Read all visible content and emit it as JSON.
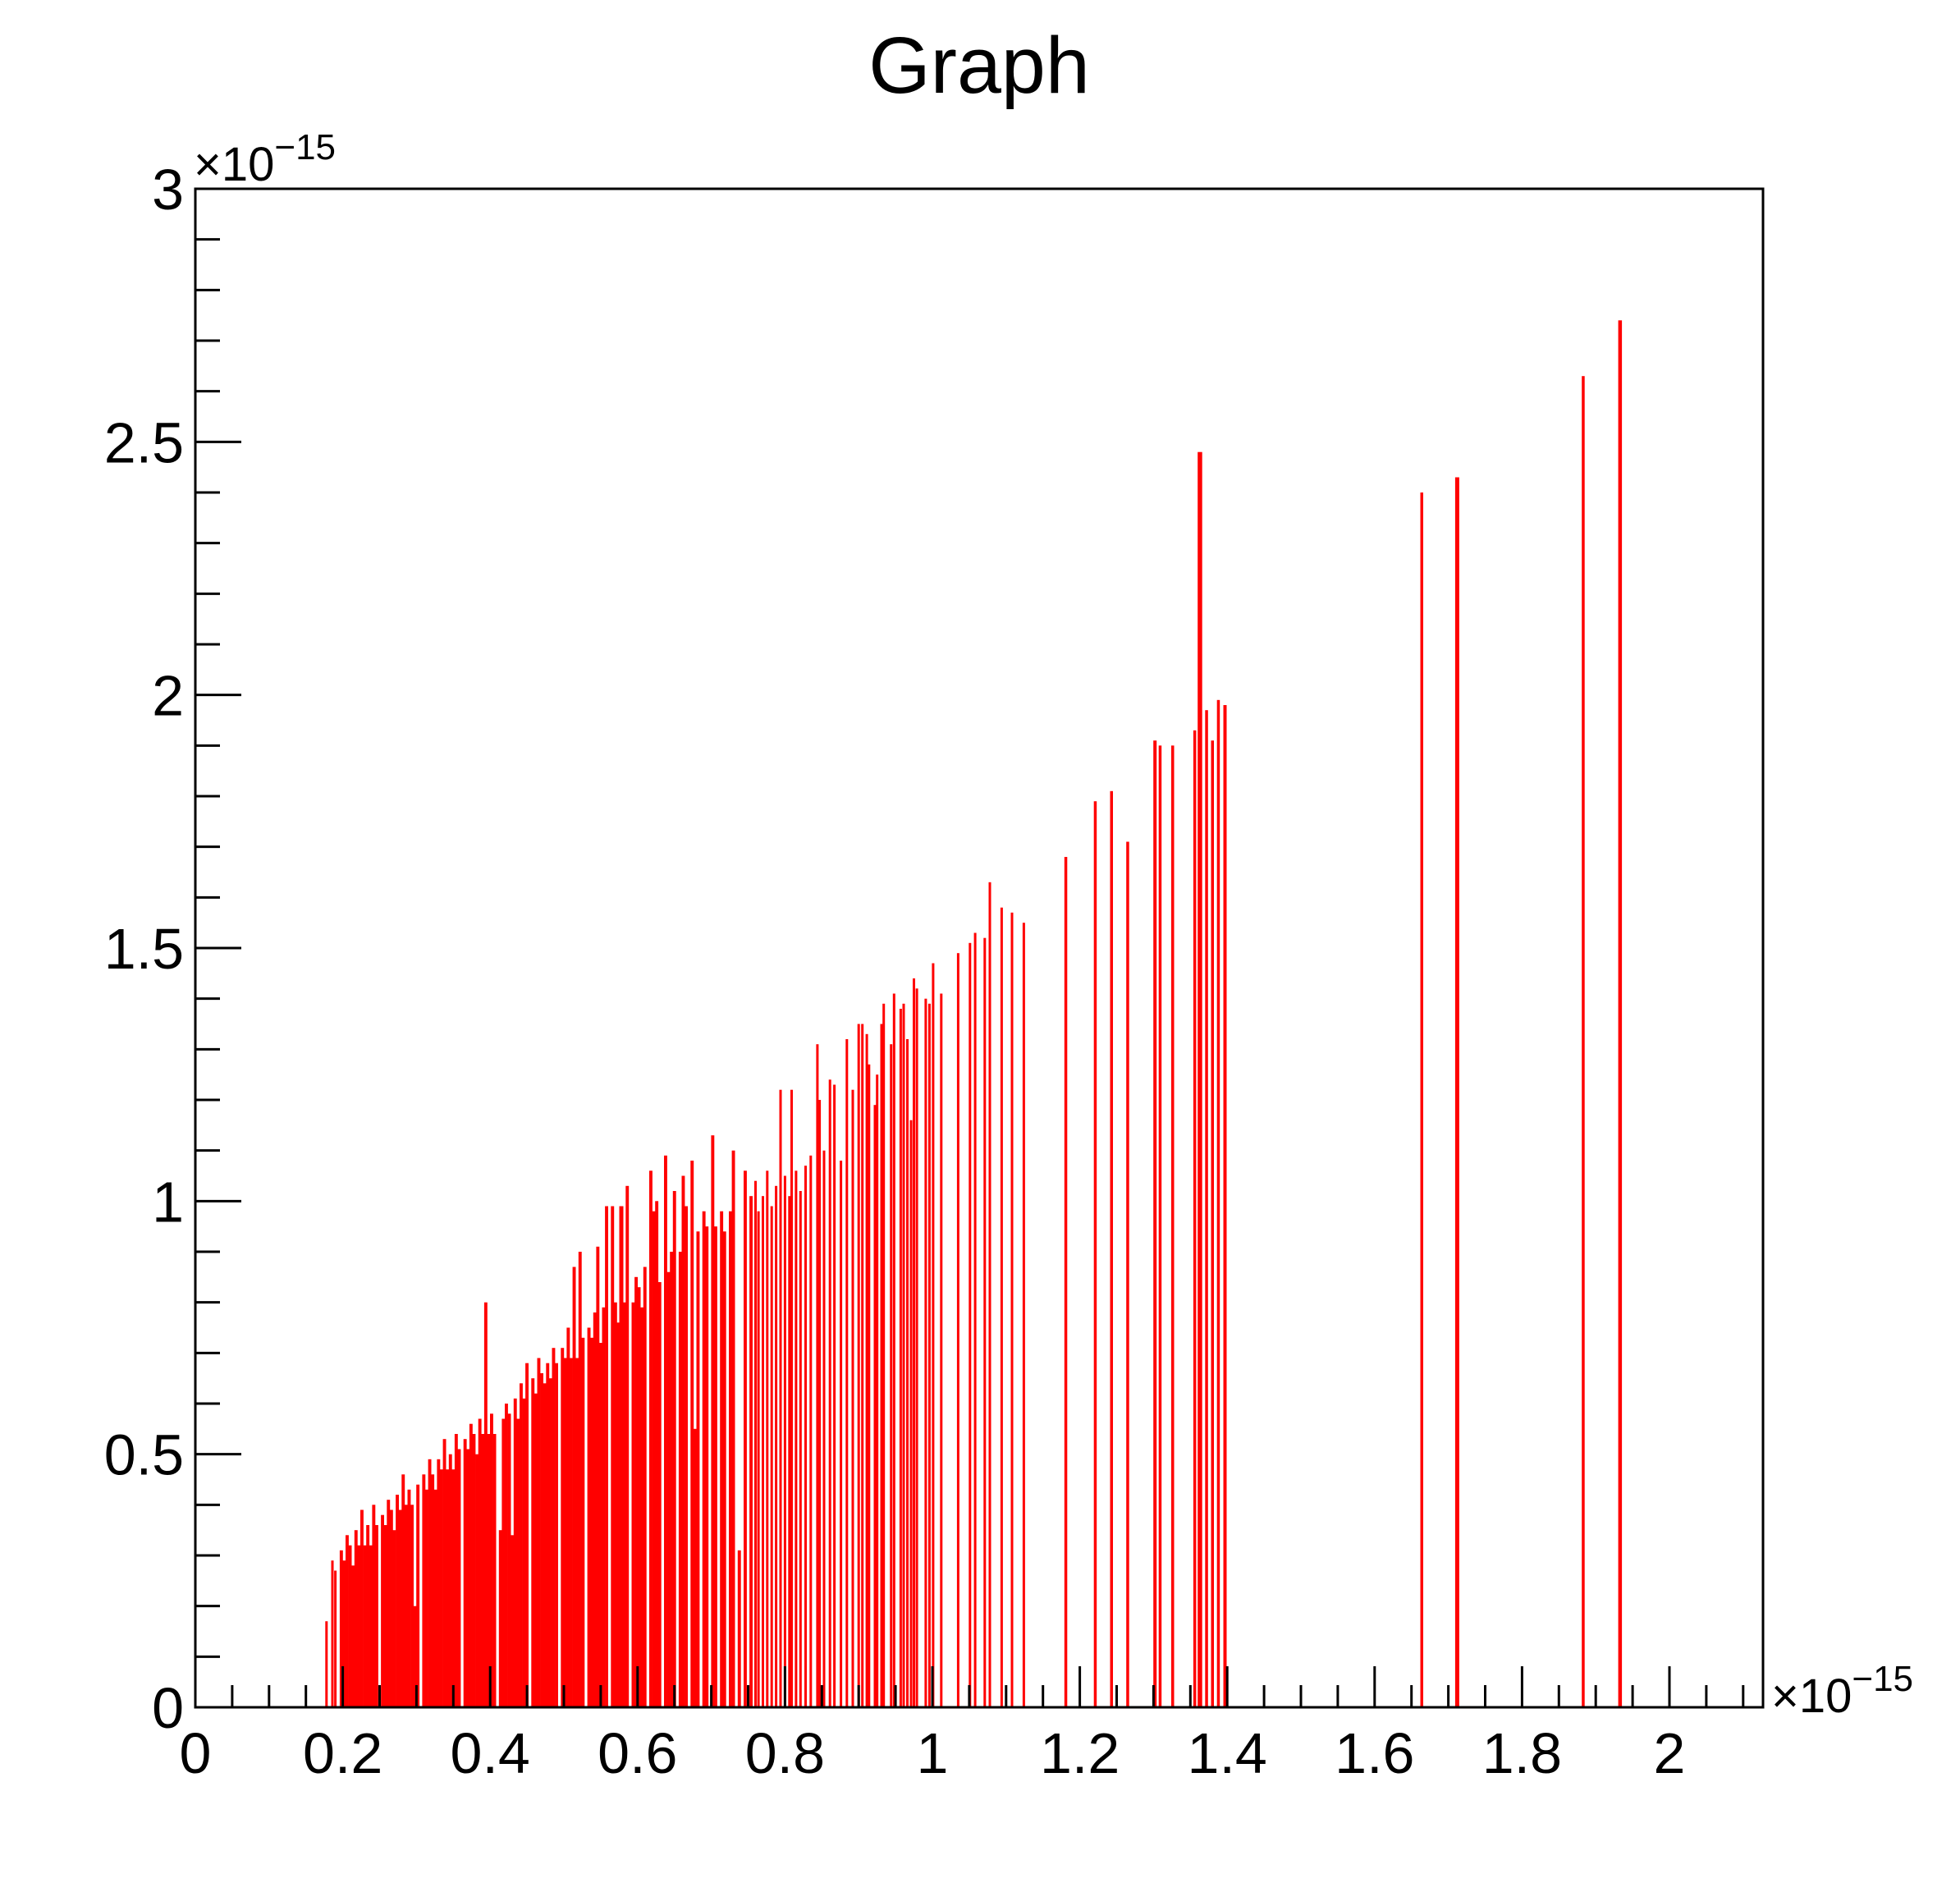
{
  "header": {
    "title": "Graph"
  },
  "chart_data": {
    "type": "bar",
    "title": "Graph",
    "xlabel": "",
    "ylabel": "",
    "legend": "none",
    "grid": false,
    "xlim": [
      0,
      2.127
    ],
    "ylim": [
      0,
      3
    ],
    "unit_scale": "both axes in units of 1e-15",
    "x_axis": {
      "exponent_mantissa": "×10",
      "exponent_power": "−15",
      "major_ticks": [
        {
          "v": 0,
          "label": "0"
        },
        {
          "v": 0.2,
          "label": "0.2"
        },
        {
          "v": 0.4,
          "label": "0.4"
        },
        {
          "v": 0.6,
          "label": "0.6"
        },
        {
          "v": 0.8,
          "label": "0.8"
        },
        {
          "v": 1,
          "label": "1"
        },
        {
          "v": 1.2,
          "label": "1.2"
        },
        {
          "v": 1.4,
          "label": "1.4"
        },
        {
          "v": 1.6,
          "label": "1.6"
        },
        {
          "v": 1.8,
          "label": "1.8"
        },
        {
          "v": 2,
          "label": "2"
        }
      ],
      "minor_step": 0.05,
      "minor_max": 2.1
    },
    "y_axis": {
      "exponent_mantissa": "×10",
      "exponent_power": "−15",
      "major_ticks": [
        {
          "v": 0,
          "label": "0"
        },
        {
          "v": 0.5,
          "label": "0.5"
        },
        {
          "v": 1,
          "label": "1"
        },
        {
          "v": 1.5,
          "label": "1.5"
        },
        {
          "v": 2,
          "label": "2"
        },
        {
          "v": 2.5,
          "label": "2.5"
        },
        {
          "v": 3,
          "label": "3"
        }
      ],
      "minor_step": 0.1,
      "minor_max": 3.0
    },
    "colors": {
      "bar": "#ff0000",
      "axis": "#000000",
      "background": "#ffffff"
    },
    "bars": [
      [
        0.178,
        0.17,
        3
      ],
      [
        0.186,
        0.29,
        3
      ],
      [
        0.19,
        0.27,
        3
      ],
      [
        0.198,
        0.31
      ],
      [
        0.202,
        0.29
      ],
      [
        0.206,
        0.34
      ],
      [
        0.21,
        0.32
      ],
      [
        0.214,
        0.28
      ],
      [
        0.218,
        0.35
      ],
      [
        0.222,
        0.32
      ],
      [
        0.226,
        0.39
      ],
      [
        0.23,
        0.32
      ],
      [
        0.234,
        0.36
      ],
      [
        0.238,
        0.32
      ],
      [
        0.242,
        0.4
      ],
      [
        0.246,
        0.36
      ],
      [
        0.254,
        0.38
      ],
      [
        0.258,
        0.36
      ],
      [
        0.262,
        0.41
      ],
      [
        0.266,
        0.39
      ],
      [
        0.27,
        0.35
      ],
      [
        0.274,
        0.42
      ],
      [
        0.278,
        0.39
      ],
      [
        0.282,
        0.46
      ],
      [
        0.286,
        0.4
      ],
      [
        0.29,
        0.43
      ],
      [
        0.294,
        0.4
      ],
      [
        0.298,
        0.2
      ],
      [
        0.302,
        0.44
      ],
      [
        0.31,
        0.46
      ],
      [
        0.314,
        0.43
      ],
      [
        0.318,
        0.49
      ],
      [
        0.322,
        0.46
      ],
      [
        0.326,
        0.43
      ],
      [
        0.33,
        0.49
      ],
      [
        0.334,
        0.47
      ],
      [
        0.338,
        0.53
      ],
      [
        0.342,
        0.47
      ],
      [
        0.346,
        0.5
      ],
      [
        0.35,
        0.47
      ],
      [
        0.354,
        0.54
      ],
      [
        0.358,
        0.51
      ],
      [
        0.366,
        0.53
      ],
      [
        0.37,
        0.51
      ],
      [
        0.374,
        0.56
      ],
      [
        0.378,
        0.54
      ],
      [
        0.382,
        0.5
      ],
      [
        0.386,
        0.57
      ],
      [
        0.39,
        0.54
      ],
      [
        0.394,
        0.8
      ],
      [
        0.398,
        0.54
      ],
      [
        0.402,
        0.58
      ],
      [
        0.406,
        0.54
      ],
      [
        0.414,
        0.35
      ],
      [
        0.418,
        0.57
      ],
      [
        0.422,
        0.6
      ],
      [
        0.426,
        0.58
      ],
      [
        0.43,
        0.34
      ],
      [
        0.434,
        0.61
      ],
      [
        0.438,
        0.57
      ],
      [
        0.442,
        0.64
      ],
      [
        0.446,
        0.61
      ],
      [
        0.45,
        0.68
      ],
      [
        0.458,
        0.65
      ],
      [
        0.462,
        0.62
      ],
      [
        0.466,
        0.69
      ],
      [
        0.47,
        0.66
      ],
      [
        0.474,
        0.64
      ],
      [
        0.478,
        0.68
      ],
      [
        0.482,
        0.65
      ],
      [
        0.486,
        0.71
      ],
      [
        0.49,
        0.68
      ],
      [
        0.498,
        0.71
      ],
      [
        0.502,
        0.69
      ],
      [
        0.506,
        0.75
      ],
      [
        0.51,
        0.69
      ],
      [
        0.514,
        0.87
      ],
      [
        0.518,
        0.69
      ],
      [
        0.522,
        0.9
      ],
      [
        0.526,
        0.73
      ],
      [
        0.534,
        0.75
      ],
      [
        0.538,
        0.73
      ],
      [
        0.542,
        0.78
      ],
      [
        0.546,
        0.91
      ],
      [
        0.55,
        0.72
      ],
      [
        0.554,
        0.79
      ],
      [
        0.558,
        0.99
      ],
      [
        0.566,
        0.99
      ],
      [
        0.57,
        0.8
      ],
      [
        0.574,
        0.76
      ],
      [
        0.578,
        0.99,
        5
      ],
      [
        0.582,
        0.8
      ],
      [
        0.586,
        1.03
      ],
      [
        0.594,
        0.8
      ],
      [
        0.598,
        0.85
      ],
      [
        0.602,
        0.83
      ],
      [
        0.606,
        0.79
      ],
      [
        0.61,
        0.87
      ],
      [
        0.618,
        1.06
      ],
      [
        0.622,
        0.98
      ],
      [
        0.626,
        1.0
      ],
      [
        0.63,
        0.84
      ],
      [
        0.638,
        1.09
      ],
      [
        0.642,
        0.86
      ],
      [
        0.646,
        0.9
      ],
      [
        0.65,
        1.02
      ],
      [
        0.658,
        0.9
      ],
      [
        0.662,
        1.05
      ],
      [
        0.666,
        0.99
      ],
      [
        0.674,
        1.08
      ],
      [
        0.678,
        0.55
      ],
      [
        0.682,
        0.94
      ],
      [
        0.69,
        0.98
      ],
      [
        0.694,
        0.95
      ],
      [
        0.702,
        1.13
      ],
      [
        0.706,
        0.95
      ],
      [
        0.714,
        0.98
      ],
      [
        0.718,
        0.94
      ],
      [
        0.726,
        0.98
      ],
      [
        0.73,
        1.1
      ],
      [
        0.738,
        0.31
      ],
      [
        0.746,
        1.06
      ],
      [
        0.754,
        1.01
      ],
      [
        0.76,
        1.04
      ],
      [
        0.764,
        0.98
      ],
      [
        0.77,
        1.01
      ],
      [
        0.776,
        1.06
      ],
      [
        0.782,
        0.99
      ],
      [
        0.788,
        1.03
      ],
      [
        0.794,
        1.22
      ],
      [
        0.8,
        1.05
      ],
      [
        0.806,
        1.01
      ],
      [
        0.809,
        1.22
      ],
      [
        0.815,
        1.06
      ],
      [
        0.821,
        1.02
      ],
      [
        0.828,
        1.07
      ],
      [
        0.835,
        1.09
      ],
      [
        0.844,
        1.31
      ],
      [
        0.847,
        1.2
      ],
      [
        0.853,
        1.1
      ],
      [
        0.861,
        1.24
      ],
      [
        0.867,
        1.23
      ],
      [
        0.876,
        1.08
      ],
      [
        0.884,
        1.32
      ],
      [
        0.892,
        1.22
      ],
      [
        0.9,
        1.35
      ],
      [
        0.905,
        1.35
      ],
      [
        0.911,
        1.33
      ],
      [
        0.914,
        1.27
      ],
      [
        0.922,
        1.19
      ],
      [
        0.925,
        1.25
      ],
      [
        0.931,
        1.35
      ],
      [
        0.934,
        1.39
      ],
      [
        0.944,
        1.31
      ],
      [
        0.948,
        1.41
      ],
      [
        0.957,
        1.38
      ],
      [
        0.961,
        1.39
      ],
      [
        0.966,
        1.32
      ],
      [
        0.971,
        1.16
      ],
      [
        0.975,
        1.44
      ],
      [
        0.979,
        1.42
      ],
      [
        0.991,
        1.4
      ],
      [
        0.996,
        1.39
      ],
      [
        1.001,
        1.47
      ],
      [
        1.012,
        1.41
      ],
      [
        1.035,
        1.49
      ],
      [
        1.051,
        1.51
      ],
      [
        1.058,
        1.53
      ],
      [
        1.071,
        1.52
      ],
      [
        1.078,
        1.63
      ],
      [
        1.094,
        1.58
      ],
      [
        1.108,
        1.57
      ],
      [
        1.124,
        1.55
      ],
      [
        1.181,
        1.68
      ],
      [
        1.221,
        1.79
      ],
      [
        1.243,
        1.81
      ],
      [
        1.265,
        1.71
      ],
      [
        1.302,
        1.91,
        4
      ],
      [
        1.309,
        1.9
      ],
      [
        1.326,
        1.9
      ],
      [
        1.356,
        1.93
      ],
      [
        1.363,
        2.48,
        5.5
      ],
      [
        1.372,
        1.97
      ],
      [
        1.38,
        1.91
      ],
      [
        1.388,
        1.99
      ],
      [
        1.397,
        1.98,
        4
      ],
      [
        1.664,
        2.4
      ],
      [
        1.712,
        2.43,
        5
      ],
      [
        1.883,
        2.63
      ],
      [
        1.933,
        2.74,
        4.5
      ]
    ]
  }
}
